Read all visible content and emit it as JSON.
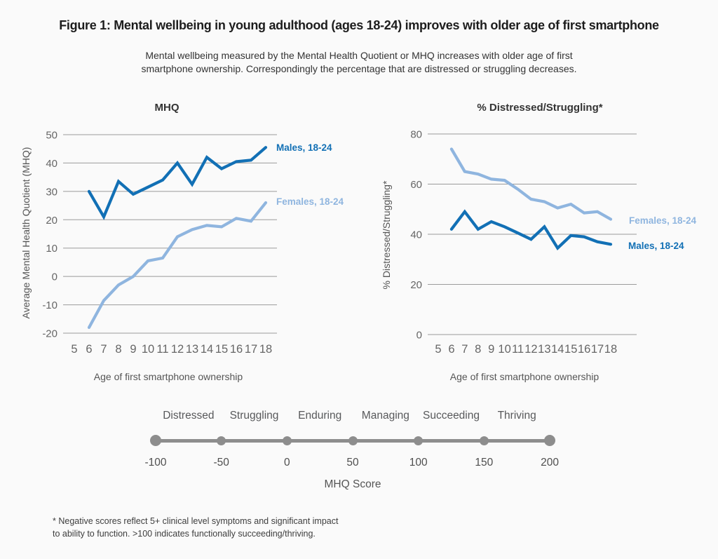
{
  "figure": {
    "title": "Figure 1:  Mental wellbeing in young adulthood (ages 18-24) improves with older age of first smartphone",
    "subtitle_line1": "Mental wellbeing measured by the Mental Health Quotient or MHQ increases with older age of first",
    "subtitle_line2": "smartphone ownership. Correspondingly the percentage that are distressed or struggling decreases."
  },
  "colors": {
    "male": "#1270b5",
    "female": "#8fb5df",
    "grid": "#9b9b9b",
    "scale_gray": "#8d8d8d",
    "tick_text": "#666666",
    "background": "#fafafa"
  },
  "chart_data": [
    {
      "type": "line",
      "title": "MHQ",
      "xlabel": "Age of first smartphone ownership",
      "ylabel": "Average Mental Health Quotient (MHQ)",
      "x_ticks": [
        5,
        6,
        7,
        8,
        9,
        10,
        11,
        12,
        13,
        14,
        15,
        16,
        17,
        18
      ],
      "y_ticks": [
        50,
        40,
        30,
        20,
        10,
        0,
        -10,
        -20
      ],
      "ylim": [
        -20,
        50
      ],
      "xlim": [
        5,
        18
      ],
      "grid": true,
      "legend_position": "line-end",
      "x": [
        6,
        7,
        8,
        9,
        10,
        11,
        12,
        13,
        14,
        15,
        16,
        17,
        18
      ],
      "series": [
        {
          "name": "Males, 18-24",
          "color_key": "male",
          "values": [
            30,
            21,
            33.5,
            29,
            31.5,
            34,
            40,
            32.5,
            42,
            38,
            40.5,
            41,
            45.5
          ]
        },
        {
          "name": "Females, 18-24",
          "color_key": "female",
          "values": [
            -18,
            -8.5,
            -3,
            0,
            5.5,
            6.5,
            14,
            16.5,
            18,
            17.5,
            20.5,
            19.5,
            26
          ]
        }
      ]
    },
    {
      "type": "line",
      "title": "% Distressed/Struggling*",
      "xlabel": "Age of first smartphone ownership",
      "ylabel": "% Distressed/Struggling*",
      "x_ticks": [
        5,
        6,
        7,
        8,
        9,
        10,
        11,
        12,
        13,
        14,
        15,
        16,
        17,
        18
      ],
      "y_ticks": [
        80,
        60,
        40,
        20,
        0
      ],
      "ylim": [
        0,
        80
      ],
      "xlim": [
        5,
        18
      ],
      "grid": true,
      "legend_position": "line-end",
      "x": [
        6,
        7,
        8,
        9,
        10,
        11,
        12,
        13,
        14,
        15,
        16,
        17,
        18
      ],
      "series": [
        {
          "name": "Females, 18-24",
          "color_key": "female",
          "values": [
            74,
            65,
            64,
            62,
            61.5,
            58,
            54,
            53,
            50.5,
            52,
            48.5,
            49,
            46
          ]
        },
        {
          "name": "Males, 18-24",
          "color_key": "male",
          "values": [
            42,
            49,
            42,
            45,
            43,
            40.5,
            38,
            43,
            34.5,
            39.5,
            39,
            37,
            36
          ]
        }
      ]
    }
  ],
  "mhq_scale": {
    "categories": [
      "Distressed",
      "Struggling",
      "Enduring",
      "Managing",
      "Succeeding",
      "Thriving"
    ],
    "tick_labels": [
      "-100",
      "-50",
      "0",
      "50",
      "100",
      "150",
      "200"
    ],
    "axis_label": "MHQ Score"
  },
  "footnote": {
    "line1": "* Negative scores reflect 5+ clinical level symptoms and significant impact",
    "line2": "to ability to function. >100 indicates functionally succeeding/thriving."
  }
}
